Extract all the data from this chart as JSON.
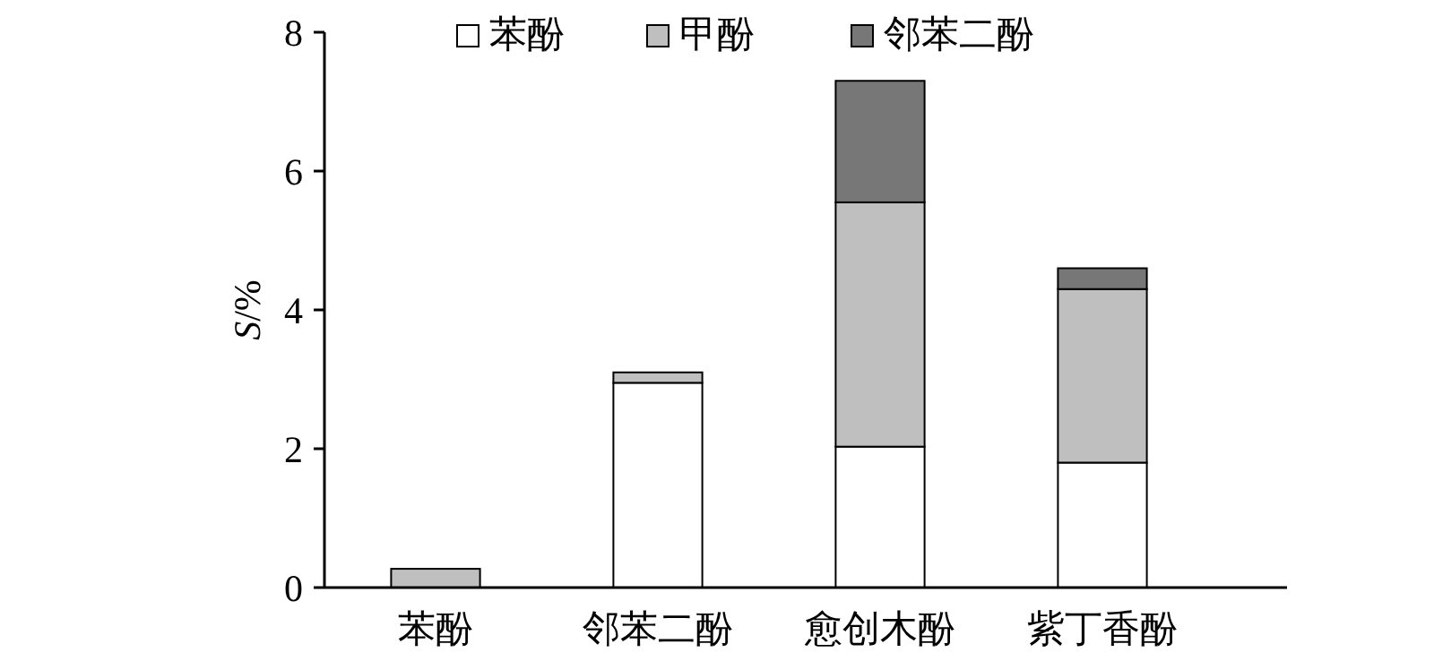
{
  "chart_data": {
    "type": "bar",
    "stacked": true,
    "ylabel": "S/%",
    "categories": [
      "苯酚",
      "邻苯二酚",
      "愈创木酚",
      "紫丁香酚"
    ],
    "series": [
      {
        "name": "苯酚",
        "color": "#ffffff",
        "values": [
          0,
          2.95,
          2.03,
          1.8
        ]
      },
      {
        "name": "甲酚",
        "color": "#bfbfbf",
        "values": [
          0.27,
          0.15,
          3.52,
          2.5
        ]
      },
      {
        "name": "邻苯二酚",
        "color": "#777777",
        "values": [
          0,
          0,
          1.75,
          0.3
        ]
      }
    ],
    "ylim": [
      0,
      8
    ],
    "yticks": [
      0,
      2,
      4,
      6,
      8
    ],
    "legend": "top",
    "grid": false
  }
}
